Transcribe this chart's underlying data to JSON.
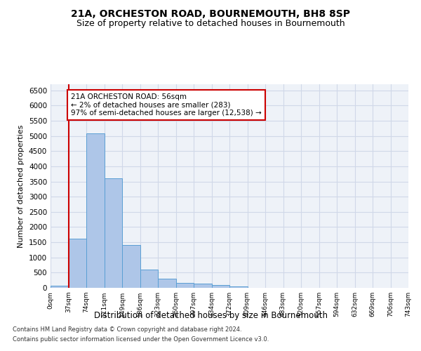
{
  "title": "21A, ORCHESTON ROAD, BOURNEMOUTH, BH8 8SP",
  "subtitle": "Size of property relative to detached houses in Bournemouth",
  "xlabel": "Distribution of detached houses by size in Bournemouth",
  "ylabel": "Number of detached properties",
  "footnote1": "Contains HM Land Registry data © Crown copyright and database right 2024.",
  "footnote2": "Contains public sector information licensed under the Open Government Licence v3.0.",
  "annotation_title": "21A ORCHESTON ROAD: 56sqm",
  "annotation_line1": "← 2% of detached houses are smaller (283)",
  "annotation_line2": "97% of semi-detached houses are larger (12,538) →",
  "bar_values": [
    75,
    1625,
    5075,
    3600,
    1400,
    600,
    290,
    155,
    130,
    90,
    45,
    10,
    5,
    5,
    5,
    5,
    5,
    5,
    5,
    5
  ],
  "bin_labels": [
    "0sqm",
    "37sqm",
    "74sqm",
    "111sqm",
    "149sqm",
    "186sqm",
    "223sqm",
    "260sqm",
    "297sqm",
    "334sqm",
    "372sqm",
    "409sqm",
    "446sqm",
    "483sqm",
    "520sqm",
    "557sqm",
    "594sqm",
    "632sqm",
    "669sqm",
    "706sqm",
    "743sqm"
  ],
  "bar_color": "#aec6e8",
  "bar_edge_color": "#5a9fd4",
  "vline_x": 1,
  "vline_color": "#cc0000",
  "annotation_box_color": "#cc0000",
  "ylim": [
    0,
    6700
  ],
  "yticks": [
    0,
    500,
    1000,
    1500,
    2000,
    2500,
    3000,
    3500,
    4000,
    4500,
    5000,
    5500,
    6000,
    6500
  ],
  "grid_color": "#d0d8e8",
  "bg_color": "#eef2f8",
  "title_fontsize": 10,
  "subtitle_fontsize": 9
}
